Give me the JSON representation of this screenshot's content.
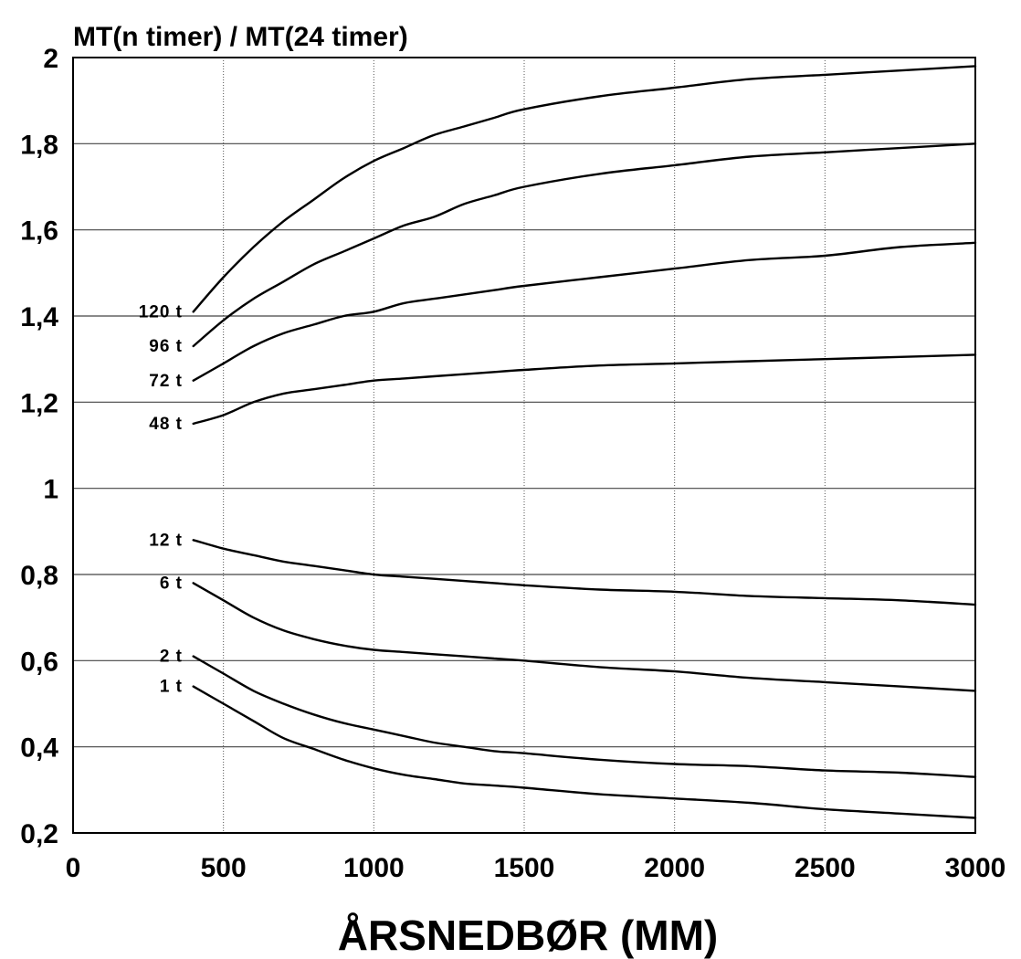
{
  "chart_data": {
    "type": "line",
    "title": "",
    "ylabel": "MT(n timer) / MT(24 timer)",
    "xlabel": "ÅRSNEDBØR (MM)",
    "xlim": [
      0,
      3000
    ],
    "ylim": [
      0.2,
      2
    ],
    "x_ticks": [
      {
        "value": 0,
        "label": "0"
      },
      {
        "value": 500,
        "label": "500"
      },
      {
        "value": 1000,
        "label": "1000"
      },
      {
        "value": 1500,
        "label": "1500"
      },
      {
        "value": 2000,
        "label": "2000"
      },
      {
        "value": 2500,
        "label": "2500"
      },
      {
        "value": 3000,
        "label": "3000"
      }
    ],
    "y_ticks": [
      {
        "value": 0.2,
        "label": "0,2"
      },
      {
        "value": 0.4,
        "label": "0,4"
      },
      {
        "value": 0.6,
        "label": "0,6"
      },
      {
        "value": 0.8,
        "label": "0,8"
      },
      {
        "value": 1,
        "label": "1"
      },
      {
        "value": 1.2,
        "label": "1,2"
      },
      {
        "value": 1.4,
        "label": "1,4"
      },
      {
        "value": 1.6,
        "label": "1,6"
      },
      {
        "value": 1.8,
        "label": "1,8"
      },
      {
        "value": 2,
        "label": "2"
      }
    ],
    "grid": true,
    "x": [
      400,
      500,
      600,
      700,
      800,
      900,
      1000,
      1100,
      1200,
      1300,
      1400,
      1500,
      1750,
      2000,
      2250,
      2500,
      2750,
      3000
    ],
    "series": [
      {
        "name": "120 t",
        "values": [
          1.41,
          1.49,
          1.56,
          1.62,
          1.67,
          1.72,
          1.76,
          1.79,
          1.82,
          1.84,
          1.86,
          1.88,
          1.91,
          1.93,
          1.95,
          1.96,
          1.97,
          1.98
        ]
      },
      {
        "name": "96 t",
        "values": [
          1.33,
          1.39,
          1.44,
          1.48,
          1.52,
          1.55,
          1.58,
          1.61,
          1.63,
          1.66,
          1.68,
          1.7,
          1.73,
          1.75,
          1.77,
          1.78,
          1.79,
          1.8
        ]
      },
      {
        "name": "72 t",
        "values": [
          1.25,
          1.29,
          1.33,
          1.36,
          1.38,
          1.4,
          1.41,
          1.43,
          1.44,
          1.45,
          1.46,
          1.47,
          1.49,
          1.51,
          1.53,
          1.54,
          1.56,
          1.57
        ]
      },
      {
        "name": "48 t",
        "values": [
          1.15,
          1.17,
          1.2,
          1.22,
          1.23,
          1.24,
          1.25,
          1.255,
          1.26,
          1.265,
          1.27,
          1.275,
          1.285,
          1.29,
          1.295,
          1.3,
          1.305,
          1.31
        ]
      },
      {
        "name": "12 t",
        "values": [
          0.88,
          0.86,
          0.845,
          0.83,
          0.82,
          0.81,
          0.8,
          0.795,
          0.79,
          0.785,
          0.78,
          0.775,
          0.765,
          0.76,
          0.75,
          0.745,
          0.74,
          0.73
        ]
      },
      {
        "name": "6 t",
        "values": [
          0.78,
          0.74,
          0.7,
          0.67,
          0.65,
          0.635,
          0.625,
          0.62,
          0.615,
          0.61,
          0.605,
          0.6,
          0.585,
          0.575,
          0.56,
          0.55,
          0.54,
          0.53
        ]
      },
      {
        "name": "2 t",
        "values": [
          0.61,
          0.57,
          0.53,
          0.5,
          0.475,
          0.455,
          0.44,
          0.425,
          0.41,
          0.4,
          0.39,
          0.385,
          0.37,
          0.36,
          0.355,
          0.345,
          0.34,
          0.33
        ]
      },
      {
        "name": "1 t",
        "values": [
          0.54,
          0.5,
          0.46,
          0.42,
          0.395,
          0.37,
          0.35,
          0.335,
          0.325,
          0.315,
          0.31,
          0.305,
          0.29,
          0.28,
          0.27,
          0.255,
          0.245,
          0.235
        ]
      }
    ],
    "colors": {
      "line": "#000000",
      "grid": "#555555",
      "background": "#ffffff"
    }
  }
}
